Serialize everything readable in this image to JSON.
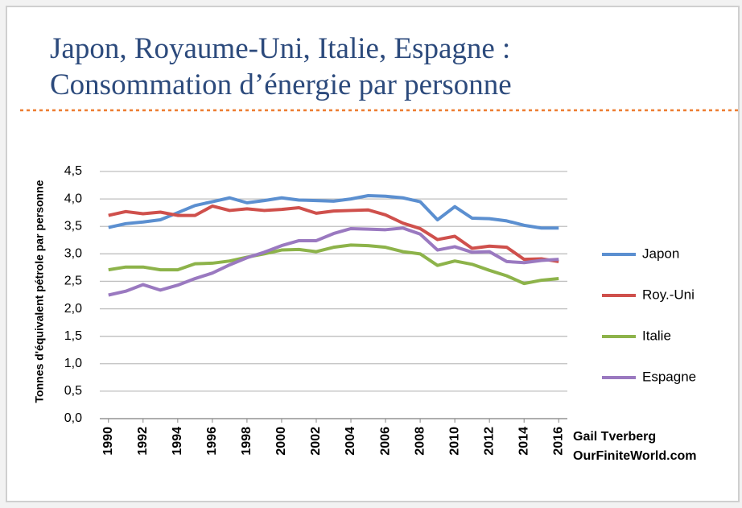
{
  "chart_data": {
    "type": "line",
    "title": [
      "Japon, Royaume-Uni, Italie, Espagne :",
      "Consommation d’énergie par personne"
    ],
    "y_label": "Tonnes d'équivalent pétrole par personne",
    "annotations": [
      "Gail Tverberg",
      "OurFiniteWorld.com"
    ],
    "x": [
      1990,
      1991,
      1992,
      1993,
      1994,
      1995,
      1996,
      1997,
      1998,
      1999,
      2000,
      2001,
      2002,
      2003,
      2004,
      2005,
      2006,
      2007,
      2008,
      2009,
      2010,
      2011,
      2012,
      2013,
      2014,
      2015,
      2016
    ],
    "xlim": [
      1989.5,
      2016.5
    ],
    "xticks": [
      1990,
      1992,
      1994,
      1996,
      1998,
      2000,
      2002,
      2004,
      2006,
      2008,
      2010,
      2012,
      2014,
      2016
    ],
    "ylim": [
      0,
      4.5
    ],
    "yticks": [
      {
        "value": 0,
        "label": "0,0"
      },
      {
        "value": 0.5,
        "label": "0,5"
      },
      {
        "value": 1,
        "label": "1,0"
      },
      {
        "value": 1.5,
        "label": "1,5"
      },
      {
        "value": 2,
        "label": "2,0"
      },
      {
        "value": 2.5,
        "label": "2,5"
      },
      {
        "value": 3,
        "label": "3,0"
      },
      {
        "value": 3.5,
        "label": "3,5"
      },
      {
        "value": 4,
        "label": "4,0"
      },
      {
        "value": 4.5,
        "label": "4,5"
      }
    ],
    "grid": true,
    "legend": "right",
    "series": [
      {
        "name": "Japon",
        "color": "#5b8fd0",
        "values": [
          3.48,
          3.55,
          3.58,
          3.62,
          3.75,
          3.88,
          3.95,
          4.02,
          3.93,
          3.97,
          4.02,
          3.98,
          3.97,
          3.96,
          4.0,
          4.06,
          4.05,
          4.02,
          3.95,
          3.62,
          3.86,
          3.65,
          3.64,
          3.6,
          3.52,
          3.47,
          3.47
        ]
      },
      {
        "name": "Roy.-Uni",
        "color": "#cf504c",
        "values": [
          3.7,
          3.77,
          3.73,
          3.76,
          3.7,
          3.7,
          3.87,
          3.79,
          3.82,
          3.79,
          3.81,
          3.84,
          3.74,
          3.78,
          3.79,
          3.8,
          3.71,
          3.56,
          3.46,
          3.26,
          3.32,
          3.1,
          3.14,
          3.12,
          2.9,
          2.91,
          2.86
        ]
      },
      {
        "name": "Italie",
        "color": "#8db34a",
        "values": [
          2.71,
          2.76,
          2.76,
          2.71,
          2.71,
          2.82,
          2.83,
          2.87,
          2.94,
          3.0,
          3.07,
          3.08,
          3.04,
          3.12,
          3.16,
          3.15,
          3.12,
          3.04,
          3.0,
          2.79,
          2.87,
          2.81,
          2.7,
          2.6,
          2.46,
          2.52,
          2.55
        ]
      },
      {
        "name": "Espagne",
        "color": "#9a79c0",
        "values": [
          2.25,
          2.32,
          2.44,
          2.34,
          2.43,
          2.55,
          2.65,
          2.8,
          2.93,
          3.03,
          3.15,
          3.24,
          3.24,
          3.37,
          3.46,
          3.45,
          3.44,
          3.47,
          3.36,
          3.07,
          3.13,
          3.03,
          3.04,
          2.86,
          2.84,
          2.88,
          2.9
        ]
      }
    ]
  }
}
